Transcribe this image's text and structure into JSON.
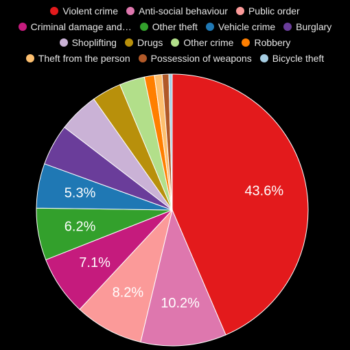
{
  "chart_data": {
    "type": "pie",
    "title": "",
    "legend_position": "top",
    "slices": [
      {
        "label": "Violent crime",
        "value": 43.6,
        "color": "#e31a1c",
        "data_label": "43.6%"
      },
      {
        "label": "Anti-social behaviour",
        "value": 10.2,
        "color": "#de77ae",
        "data_label": "10.2%"
      },
      {
        "label": "Public order",
        "value": 8.2,
        "color": "#fb9a99",
        "data_label": "8.2%"
      },
      {
        "label": "Criminal damage and…",
        "value": 7.1,
        "color": "#c51b7d",
        "data_label": "7.1%"
      },
      {
        "label": "Other theft",
        "value": 6.2,
        "color": "#33a02c",
        "data_label": "6.2%"
      },
      {
        "label": "Vehicle crime",
        "value": 5.3,
        "color": "#1f78b4",
        "data_label": "5.3%"
      },
      {
        "label": "Burglary",
        "value": 4.9,
        "color": "#6a3d9a",
        "data_label": ""
      },
      {
        "label": "Shoplifting",
        "value": 4.8,
        "color": "#cab2d6",
        "data_label": ""
      },
      {
        "label": "Drugs",
        "value": 3.5,
        "color": "#b8900b",
        "data_label": ""
      },
      {
        "label": "Other crime",
        "value": 3.0,
        "color": "#b2df8a",
        "data_label": ""
      },
      {
        "label": "Robbery",
        "value": 1.2,
        "color": "#ff7f00",
        "data_label": ""
      },
      {
        "label": "Theft from the person",
        "value": 0.9,
        "color": "#fdbf6f",
        "data_label": ""
      },
      {
        "label": "Possession of weapons",
        "value": 0.8,
        "color": "#b15928",
        "data_label": ""
      },
      {
        "label": "Bicycle theft",
        "value": 0.4,
        "color": "#a6cee3",
        "data_label": ""
      }
    ]
  }
}
